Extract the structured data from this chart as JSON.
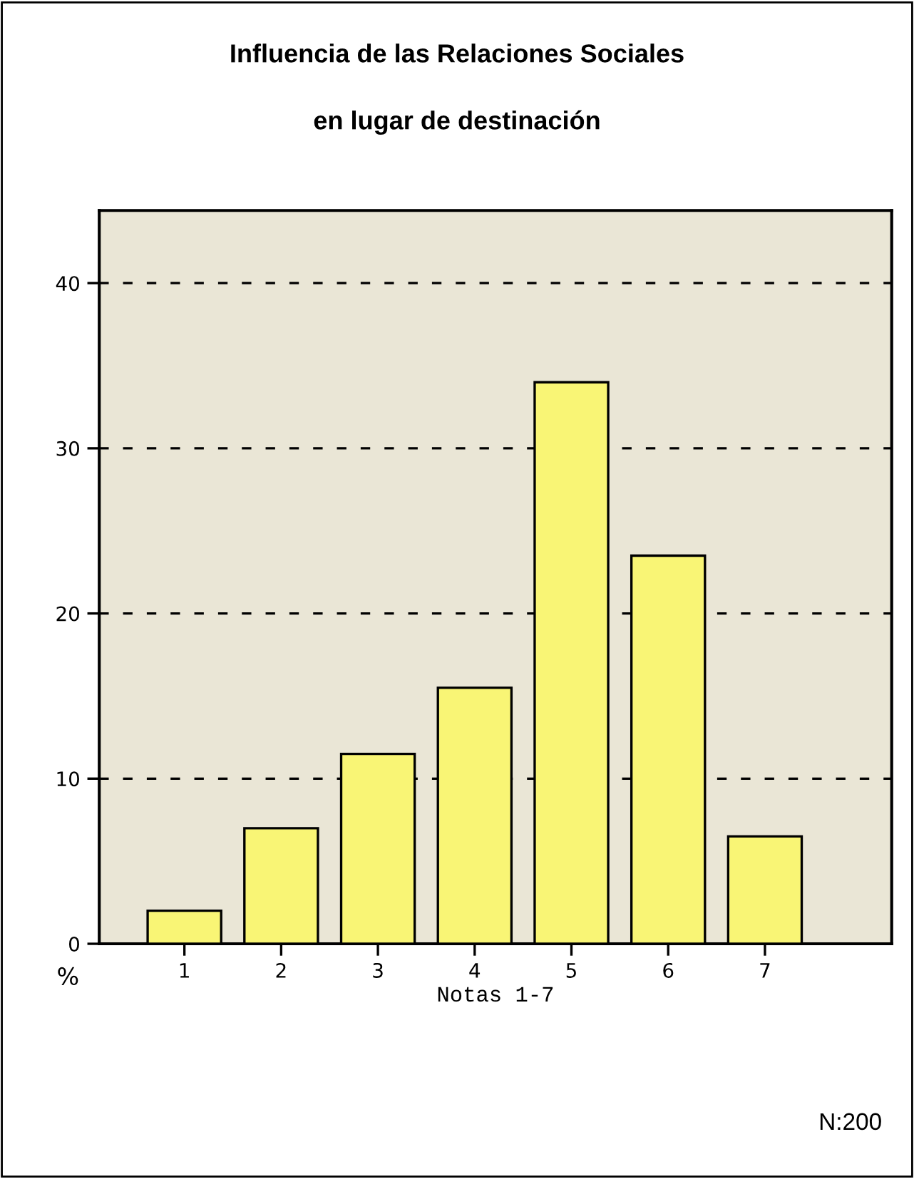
{
  "chart_data": {
    "type": "bar",
    "title": "Influencia de las Relaciones Sociales\n\nen lugar de destinación",
    "xlabel": "Notas 1-7",
    "ylabel": "%",
    "categories": [
      "1",
      "2",
      "3",
      "4",
      "5",
      "6",
      "7"
    ],
    "values": [
      2.0,
      7.0,
      11.5,
      15.5,
      34.0,
      23.5,
      6.5
    ],
    "color": "#f9f575",
    "ylim": [
      0,
      44.4
    ],
    "yticks": [
      0,
      10,
      20,
      30,
      40
    ],
    "grid": "y",
    "annotations": [
      "N:200"
    ]
  }
}
